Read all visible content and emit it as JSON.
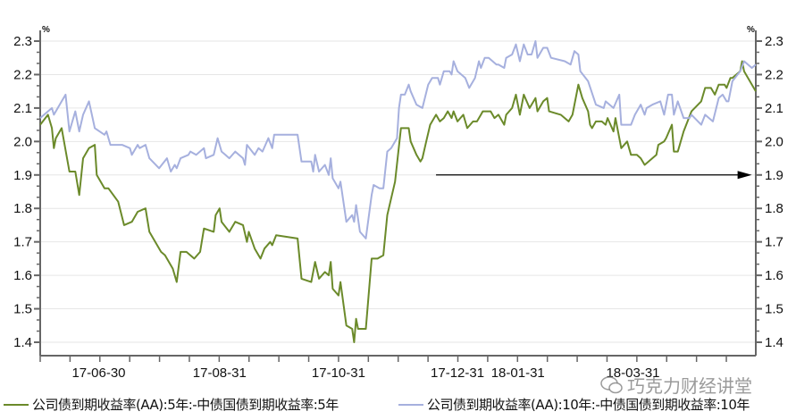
{
  "chart_data": {
    "type": "line",
    "title": "",
    "y_unit_left": "%",
    "y_unit_right": "%",
    "ylim": [
      1.4,
      2.3
    ],
    "yticks": [
      "2.3",
      "2.2",
      "2.1",
      "2.0",
      "1.9",
      "1.8",
      "1.7",
      "1.6",
      "1.5",
      "1.4"
    ],
    "x_unit": "days since 2017-05-31",
    "xlim": [
      0,
      367
    ],
    "xticks": [
      {
        "label": "17-06-30",
        "day": 30
      },
      {
        "label": "17-08-31",
        "day": 92
      },
      {
        "label": "17-10-31",
        "day": 153
      },
      {
        "label": "17-12-31",
        "day": 214
      },
      {
        "label": "18-01-31",
        "day": 245
      },
      {
        "label": "18-03-31",
        "day": 304
      }
    ],
    "grid": true,
    "legend_placement": "bottom",
    "annotation": {
      "type": "arrow",
      "from_day": 203,
      "to_day": 365,
      "value": 1.9
    },
    "series": [
      {
        "name": "公司债到期收益率(AA):5年:-中债国债到期收益率:5年",
        "color": "#6b8a2a",
        "points": [
          [
            0,
            2.05
          ],
          [
            4,
            2.08
          ],
          [
            6,
            2.04
          ],
          [
            7,
            1.98
          ],
          [
            8,
            2.01
          ],
          [
            11,
            2.04
          ],
          [
            15,
            1.91
          ],
          [
            18,
            1.91
          ],
          [
            20,
            1.84
          ],
          [
            22,
            1.95
          ],
          [
            25,
            1.98
          ],
          [
            28,
            1.99
          ],
          [
            29,
            1.9
          ],
          [
            33,
            1.86
          ],
          [
            35,
            1.86
          ],
          [
            40,
            1.82
          ],
          [
            43,
            1.75
          ],
          [
            47,
            1.76
          ],
          [
            50,
            1.79
          ],
          [
            54,
            1.8
          ],
          [
            56,
            1.73
          ],
          [
            62,
            1.67
          ],
          [
            64,
            1.66
          ],
          [
            68,
            1.62
          ],
          [
            70,
            1.58
          ],
          [
            72,
            1.67
          ],
          [
            75,
            1.67
          ],
          [
            79,
            1.65
          ],
          [
            82,
            1.67
          ],
          [
            84,
            1.74
          ],
          [
            89,
            1.73
          ],
          [
            90,
            1.78
          ],
          [
            92,
            1.8
          ],
          [
            93,
            1.76
          ],
          [
            97,
            1.73
          ],
          [
            100,
            1.76
          ],
          [
            104,
            1.75
          ],
          [
            106,
            1.7
          ],
          [
            107,
            1.73
          ],
          [
            110,
            1.68
          ],
          [
            113,
            1.65
          ],
          [
            115,
            1.68
          ],
          [
            118,
            1.7
          ],
          [
            119,
            1.69
          ],
          [
            121,
            1.72
          ],
          [
            132,
            1.71
          ],
          [
            134,
            1.59
          ],
          [
            139,
            1.58
          ],
          [
            141,
            1.64
          ],
          [
            143,
            1.59
          ],
          [
            146,
            1.61
          ],
          [
            148,
            1.6
          ],
          [
            149,
            1.64
          ],
          [
            150,
            1.56
          ],
          [
            153,
            1.54
          ],
          [
            154,
            1.58
          ],
          [
            157,
            1.45
          ],
          [
            160,
            1.44
          ],
          [
            161,
            1.4
          ],
          [
            162,
            1.47
          ],
          [
            163,
            1.44
          ],
          [
            167,
            1.44
          ],
          [
            170,
            1.65
          ],
          [
            173,
            1.65
          ],
          [
            176,
            1.66
          ],
          [
            178,
            1.78
          ],
          [
            182,
            1.88
          ],
          [
            185,
            2.04
          ],
          [
            189,
            2.04
          ],
          [
            190,
            2.0
          ],
          [
            193,
            1.96
          ],
          [
            195,
            1.94
          ],
          [
            196,
            1.95
          ],
          [
            198,
            2.0
          ],
          [
            200,
            2.05
          ],
          [
            203,
            2.08
          ],
          [
            205,
            2.06
          ],
          [
            207,
            2.07
          ],
          [
            209,
            2.09
          ],
          [
            211,
            2.07
          ],
          [
            212,
            2.09
          ],
          [
            214,
            2.06
          ],
          [
            217,
            2.08
          ],
          [
            219,
            2.04
          ],
          [
            222,
            2.06
          ],
          [
            224,
            2.06
          ],
          [
            226,
            2.08
          ],
          [
            227,
            2.09
          ],
          [
            231,
            2.09
          ],
          [
            233,
            2.07
          ],
          [
            235,
            2.08
          ],
          [
            238,
            2.05
          ],
          [
            239,
            2.08
          ],
          [
            242,
            2.1
          ],
          [
            244,
            2.14
          ],
          [
            246,
            2.08
          ],
          [
            248,
            2.14
          ],
          [
            251,
            2.1
          ],
          [
            254,
            2.13
          ],
          [
            255,
            2.09
          ],
          [
            258,
            2.12
          ],
          [
            260,
            2.13
          ],
          [
            261,
            2.09
          ],
          [
            267,
            2.08
          ],
          [
            271,
            2.06
          ],
          [
            273,
            2.08
          ],
          [
            276,
            2.17
          ],
          [
            278,
            2.13
          ],
          [
            281,
            2.09
          ],
          [
            282,
            2.05
          ],
          [
            283,
            2.04
          ],
          [
            285,
            2.06
          ],
          [
            288,
            2.06
          ],
          [
            290,
            2.05
          ],
          [
            291,
            2.07
          ],
          [
            294,
            2.03
          ],
          [
            295,
            2.07
          ],
          [
            298,
            1.98
          ],
          [
            301,
            2.0
          ],
          [
            303,
            1.96
          ],
          [
            306,
            1.96
          ],
          [
            308,
            1.95
          ],
          [
            310,
            1.93
          ],
          [
            316,
            1.96
          ],
          [
            317,
            1.99
          ],
          [
            320,
            2.0
          ],
          [
            321,
            2.01
          ],
          [
            324,
            2.05
          ],
          [
            325,
            1.97
          ],
          [
            327,
            1.97
          ],
          [
            330,
            2.03
          ],
          [
            334,
            2.09
          ],
          [
            339,
            2.12
          ],
          [
            341,
            2.16
          ],
          [
            344,
            2.16
          ],
          [
            346,
            2.14
          ],
          [
            348,
            2.17
          ],
          [
            351,
            2.17
          ],
          [
            352,
            2.16
          ],
          [
            354,
            2.19
          ],
          [
            355,
            2.19
          ],
          [
            359,
            2.21
          ],
          [
            360,
            2.24
          ],
          [
            361,
            2.21
          ],
          [
            367,
            2.15
          ]
        ]
      },
      {
        "name": "公司债到期收益率(AA):10年:-中债国债到期收益率:10年",
        "color": "#a6b0de",
        "points": [
          [
            0,
            2.07
          ],
          [
            4,
            2.09
          ],
          [
            6,
            2.1
          ],
          [
            7,
            2.08
          ],
          [
            11,
            2.12
          ],
          [
            13,
            2.14
          ],
          [
            15,
            2.03
          ],
          [
            18,
            2.09
          ],
          [
            20,
            2.03
          ],
          [
            22,
            2.08
          ],
          [
            25,
            2.12
          ],
          [
            28,
            2.04
          ],
          [
            33,
            2.02
          ],
          [
            34,
            2.03
          ],
          [
            36,
            1.99
          ],
          [
            40,
            1.99
          ],
          [
            42,
            1.99
          ],
          [
            46,
            1.98
          ],
          [
            47,
            1.96
          ],
          [
            50,
            1.99
          ],
          [
            51,
            1.98
          ],
          [
            54,
            1.99
          ],
          [
            56,
            1.95
          ],
          [
            61,
            1.92
          ],
          [
            65,
            1.95
          ],
          [
            67,
            1.91
          ],
          [
            69,
            1.93
          ],
          [
            70,
            1.92
          ],
          [
            72,
            1.95
          ],
          [
            76,
            1.96
          ],
          [
            77,
            1.97
          ],
          [
            80,
            1.96
          ],
          [
            84,
            1.98
          ],
          [
            85,
            1.95
          ],
          [
            89,
            1.96
          ],
          [
            91,
            2.01
          ],
          [
            93,
            1.97
          ],
          [
            95,
            1.96
          ],
          [
            97,
            1.95
          ],
          [
            100,
            1.97
          ],
          [
            104,
            1.95
          ],
          [
            105,
            1.93
          ],
          [
            106,
            1.99
          ],
          [
            110,
            1.96
          ],
          [
            112,
            1.98
          ],
          [
            114,
            1.97
          ],
          [
            117,
            2.01
          ],
          [
            119,
            1.98
          ],
          [
            120,
            2.02
          ],
          [
            132,
            2.02
          ],
          [
            134,
            1.94
          ],
          [
            139,
            1.94
          ],
          [
            140,
            1.91
          ],
          [
            141,
            1.96
          ],
          [
            143,
            1.91
          ],
          [
            146,
            1.93
          ],
          [
            148,
            1.9
          ],
          [
            149,
            1.95
          ],
          [
            150,
            1.89
          ],
          [
            153,
            1.86
          ],
          [
            154,
            1.88
          ],
          [
            157,
            1.76
          ],
          [
            160,
            1.78
          ],
          [
            161,
            1.76
          ],
          [
            162,
            1.81
          ],
          [
            164,
            1.73
          ],
          [
            167,
            1.71
          ],
          [
            170,
            1.84
          ],
          [
            171,
            1.87
          ],
          [
            174,
            1.86
          ],
          [
            176,
            1.86
          ],
          [
            178,
            1.97
          ],
          [
            180,
            1.98
          ],
          [
            183,
            2.01
          ],
          [
            184,
            2.1
          ],
          [
            185,
            2.14
          ],
          [
            187,
            2.14
          ],
          [
            189,
            2.17
          ],
          [
            190,
            2.15
          ],
          [
            193,
            2.11
          ],
          [
            196,
            2.1
          ],
          [
            199,
            2.17
          ],
          [
            201,
            2.19
          ],
          [
            204,
            2.19
          ],
          [
            205,
            2.17
          ],
          [
            207,
            2.21
          ],
          [
            210,
            2.21
          ],
          [
            211,
            2.2
          ],
          [
            212,
            2.24
          ],
          [
            214,
            2.21
          ],
          [
            218,
            2.19
          ],
          [
            220,
            2.16
          ],
          [
            223,
            2.19
          ],
          [
            225,
            2.24
          ],
          [
            226,
            2.22
          ],
          [
            228,
            2.25
          ],
          [
            230,
            2.25
          ],
          [
            234,
            2.23
          ],
          [
            235,
            2.23
          ],
          [
            238,
            2.22
          ],
          [
            239,
            2.25
          ],
          [
            242,
            2.26
          ],
          [
            244,
            2.29
          ],
          [
            246,
            2.24
          ],
          [
            248,
            2.29
          ],
          [
            250,
            2.26
          ],
          [
            252,
            2.26
          ],
          [
            254,
            2.3
          ],
          [
            255,
            2.25
          ],
          [
            258,
            2.28
          ],
          [
            260,
            2.28
          ],
          [
            262,
            2.25
          ],
          [
            269,
            2.24
          ],
          [
            272,
            2.23
          ],
          [
            274,
            2.27
          ],
          [
            276,
            2.26
          ],
          [
            277,
            2.21
          ],
          [
            281,
            2.18
          ],
          [
            285,
            2.11
          ],
          [
            289,
            2.1
          ],
          [
            290,
            2.12
          ],
          [
            294,
            2.1
          ],
          [
            297,
            2.14
          ],
          [
            298,
            2.05
          ],
          [
            303,
            2.05
          ],
          [
            305,
            2.08
          ],
          [
            308,
            2.11
          ],
          [
            310,
            2.08
          ],
          [
            311,
            2.1
          ],
          [
            314,
            2.11
          ],
          [
            318,
            2.12
          ],
          [
            320,
            2.08
          ],
          [
            322,
            2.14
          ],
          [
            324,
            2.14
          ],
          [
            325,
            2.08
          ],
          [
            327,
            2.12
          ],
          [
            330,
            2.07
          ],
          [
            333,
            2.07
          ],
          [
            334,
            2.08
          ],
          [
            339,
            2.05
          ],
          [
            341,
            2.08
          ],
          [
            343,
            2.07
          ],
          [
            345,
            2.06
          ],
          [
            348,
            2.13
          ],
          [
            350,
            2.14
          ],
          [
            352,
            2.12
          ],
          [
            353,
            2.12
          ],
          [
            355,
            2.18
          ],
          [
            359,
            2.21
          ],
          [
            361,
            2.24
          ],
          [
            365,
            2.22
          ],
          [
            367,
            2.23
          ]
        ]
      }
    ]
  },
  "watermark": "巧克力财经讲堂"
}
